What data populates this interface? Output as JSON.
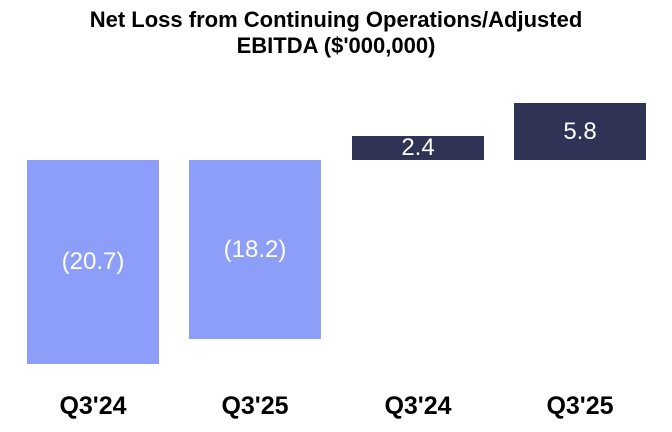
{
  "title": {
    "line1": "Net Loss from Continuing Operations/Adjusted",
    "line2": "EBITDA ($'000,000)"
  },
  "chart_data": {
    "type": "bar",
    "title": "Net Loss from Continuing Operations/Adjusted EBITDA ($'000,000)",
    "categories": [
      "Q3'24",
      "Q3'25",
      "Q3'24",
      "Q3'25"
    ],
    "bars": [
      {
        "category": "Q3'24",
        "value": -20.7,
        "label": "(20.7)",
        "color": "#8D9EF8"
      },
      {
        "category": "Q3'25",
        "value": -18.2,
        "label": "(18.2)",
        "color": "#8D9EF8"
      },
      {
        "category": "Q3'24",
        "value": 2.4,
        "label": "2.4",
        "color": "#2F3456"
      },
      {
        "category": "Q3'25",
        "value": 5.8,
        "label": "5.8",
        "color": "#2F3456"
      }
    ],
    "ylim": [
      -20.7,
      5.8
    ],
    "negative_bar_color": "#8D9EF8",
    "positive_bar_color": "#2F3456",
    "value_label_color": "#FFFFFF",
    "axes_visible": false,
    "gridlines": false,
    "legend": "none"
  }
}
